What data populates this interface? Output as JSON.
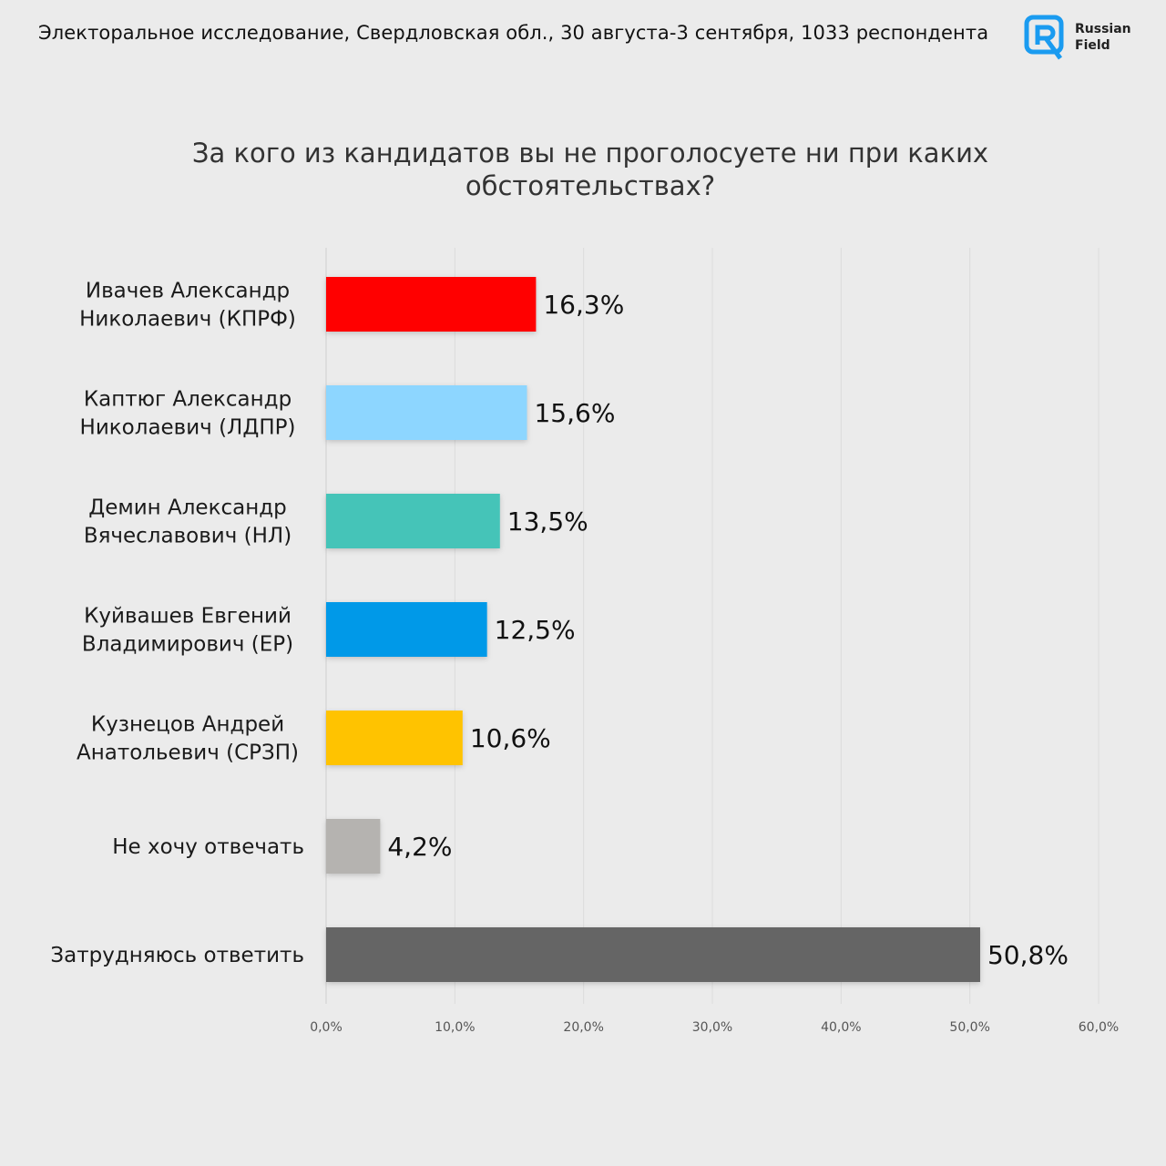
{
  "header": {
    "survey_text": "Электоральное исследование, Свердловская обл., 30 августа-3 сентября, 1033 респондента",
    "logo_word_1": "Russian",
    "logo_word_2": "Field",
    "logo_icon": "russian-field-logo-icon"
  },
  "colors": {
    "background": "#ebebeb",
    "logo_blue": "#1a9bf0"
  },
  "chart_data": {
    "type": "bar",
    "orientation": "horizontal",
    "title_lines": [
      "За кого из кандидатов вы не проголосуете  ни при каких",
      "обстоятельствах?"
    ],
    "categories": [
      [
        "Ивачев Александр",
        "Николаевич (КПРФ)"
      ],
      [
        "Каптюг Александр",
        "Николаевич (ЛДПР)"
      ],
      [
        "Демин Александр",
        "Вячеславович (НЛ)"
      ],
      [
        "Куйвашев Евгений",
        "Владимирович (ЕР)"
      ],
      [
        "Кузнецов Андрей",
        "Анатольевич (СРЗП)"
      ],
      [
        "Не хочу отвечать"
      ],
      [
        "Затрудняюсь ответить"
      ]
    ],
    "values": [
      16.3,
      15.6,
      13.5,
      12.5,
      10.6,
      4.2,
      50.8
    ],
    "value_labels": [
      "16,3%",
      "15,6%",
      "13,5%",
      "12,5%",
      "10,6%",
      "4,2%",
      "50,8%"
    ],
    "bar_colors": [
      "#ff0000",
      "#8dd6ff",
      "#45c4b8",
      "#0099e8",
      "#ffc300",
      "#b5b3b0",
      "#656565"
    ],
    "xlim": [
      0,
      60
    ],
    "xticks": [
      0,
      10,
      20,
      30,
      40,
      50,
      60
    ],
    "xtick_labels": [
      "0,0%",
      "10,0%",
      "20,0%",
      "30,0%",
      "40,0%",
      "50,0%",
      "60,0%"
    ],
    "grid": true
  }
}
